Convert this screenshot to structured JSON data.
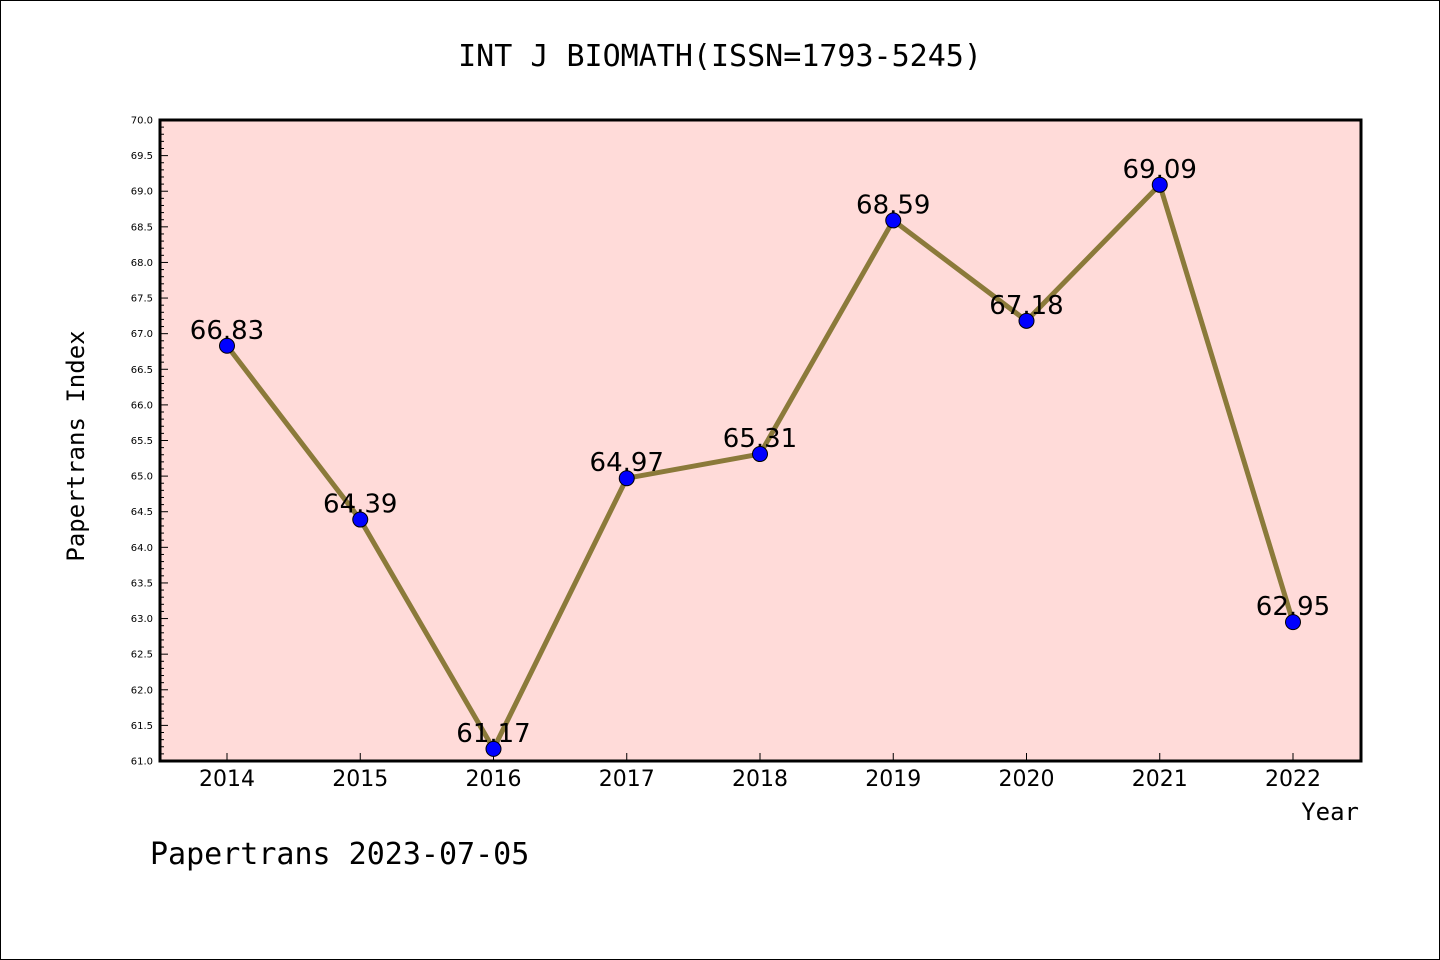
{
  "chart_data": {
    "type": "line",
    "title": "INT J BIOMATH(ISSN=1793-5245)",
    "xlabel": "Year",
    "ylabel": "Papertrans Index",
    "footer": "Papertrans 2023-07-05",
    "categories": [
      "2014",
      "2015",
      "2016",
      "2017",
      "2018",
      "2019",
      "2020",
      "2021",
      "2022"
    ],
    "values": [
      66.83,
      64.39,
      61.17,
      64.97,
      65.31,
      68.59,
      67.18,
      69.09,
      62.95
    ],
    "data_labels": [
      "66.83",
      "64.39",
      "61.17",
      "64.97",
      "65.31",
      "68.59",
      "67.18",
      "69.09",
      "62.95"
    ],
    "ylim": [
      61.0,
      70.0
    ],
    "yticks": [
      "61.0",
      "61.5",
      "62.0",
      "62.5",
      "63.0",
      "63.5",
      "64.0",
      "64.5",
      "65.0",
      "65.5",
      "66.0",
      "66.5",
      "67.0",
      "67.5",
      "68.0",
      "68.5",
      "69.0",
      "69.5",
      "70.0"
    ],
    "grid": false,
    "legend": "none",
    "colors": {
      "plot_background": "#FFDBD9",
      "line": "#8B7A3A",
      "marker": "#0000FF"
    }
  }
}
